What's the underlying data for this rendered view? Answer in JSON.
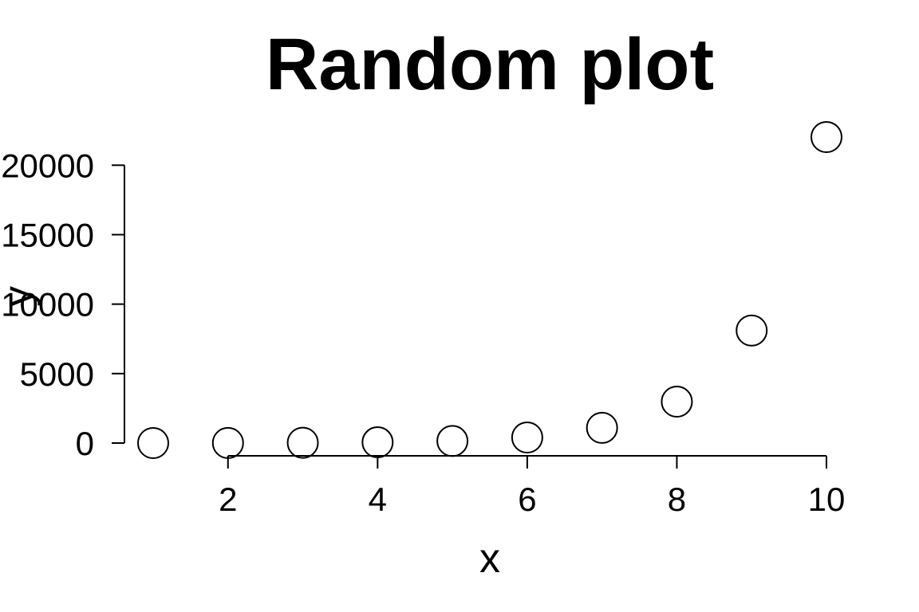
{
  "chart_data": {
    "type": "scatter",
    "title": "Random plot",
    "xlabel": "x",
    "ylabel": "y",
    "x": [
      1,
      2,
      3,
      4,
      5,
      6,
      7,
      8,
      9,
      10
    ],
    "y": [
      1,
      8,
      20,
      55,
      148,
      403,
      1097,
      2981,
      8103,
      22026
    ],
    "x_ticks": [
      2,
      4,
      6,
      8,
      10
    ],
    "x_tick_labels": [
      "2",
      "4",
      "6",
      "8",
      "10"
    ],
    "y_ticks": [
      0,
      5000,
      10000,
      15000,
      20000
    ],
    "y_tick_labels": [
      "0",
      "5000",
      "10000",
      "15000",
      "20000"
    ],
    "xlim": [
      1,
      10
    ],
    "ylim": [
      0,
      22026
    ],
    "marker": "open-circle",
    "point_color": "#000000",
    "grid": false,
    "legend": "none"
  }
}
